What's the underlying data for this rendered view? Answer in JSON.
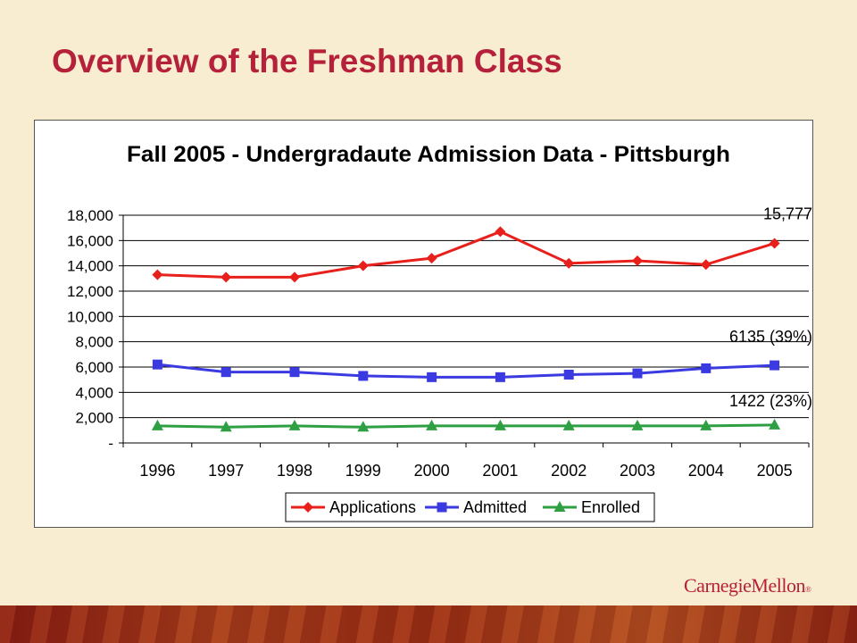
{
  "slide": {
    "title": "Overview of the Freshman Class",
    "logo_text": "CarnegieMellon",
    "logo_mark": "®"
  },
  "colors": {
    "title": "#b5213a",
    "background": "#f8edd0",
    "applications": "#e8201c",
    "admitted": "#3a3ae0",
    "enrolled": "#2ea043"
  },
  "chart_data": {
    "type": "line",
    "title": "Fall 2005 - Undergradaute Admission Data - Pittsburgh",
    "xlabel": "",
    "ylabel": "",
    "categories": [
      "1996",
      "1997",
      "1998",
      "1999",
      "2000",
      "2001",
      "2002",
      "2003",
      "2004",
      "2005"
    ],
    "ylim": [
      0,
      18000
    ],
    "yticks": [
      0,
      2000,
      4000,
      6000,
      8000,
      10000,
      12000,
      14000,
      16000,
      18000
    ],
    "ytick_labels": [
      "-",
      "2,000",
      "4,000",
      "6,000",
      "8,000",
      "10,000",
      "12,000",
      "14,000",
      "16,000",
      "18,000"
    ],
    "grid": "horizontal",
    "legend": "bottom",
    "series": [
      {
        "name": "Applications",
        "marker": "diamond",
        "color": "#e8201c",
        "values": [
          13300,
          13100,
          13100,
          14000,
          14600,
          16700,
          14200,
          14400,
          14100,
          15777
        ],
        "end_label": "15,777"
      },
      {
        "name": "Admitted",
        "marker": "square",
        "color": "#3a3ae0",
        "values": [
          6200,
          5600,
          5600,
          5300,
          5200,
          5200,
          5400,
          5500,
          5900,
          6135
        ],
        "end_label": "6135 (39%)"
      },
      {
        "name": "Enrolled",
        "marker": "triangle",
        "color": "#2ea043",
        "values": [
          1350,
          1250,
          1350,
          1250,
          1350,
          1350,
          1350,
          1350,
          1350,
          1422
        ],
        "end_label": "1422 (23%)"
      }
    ]
  }
}
